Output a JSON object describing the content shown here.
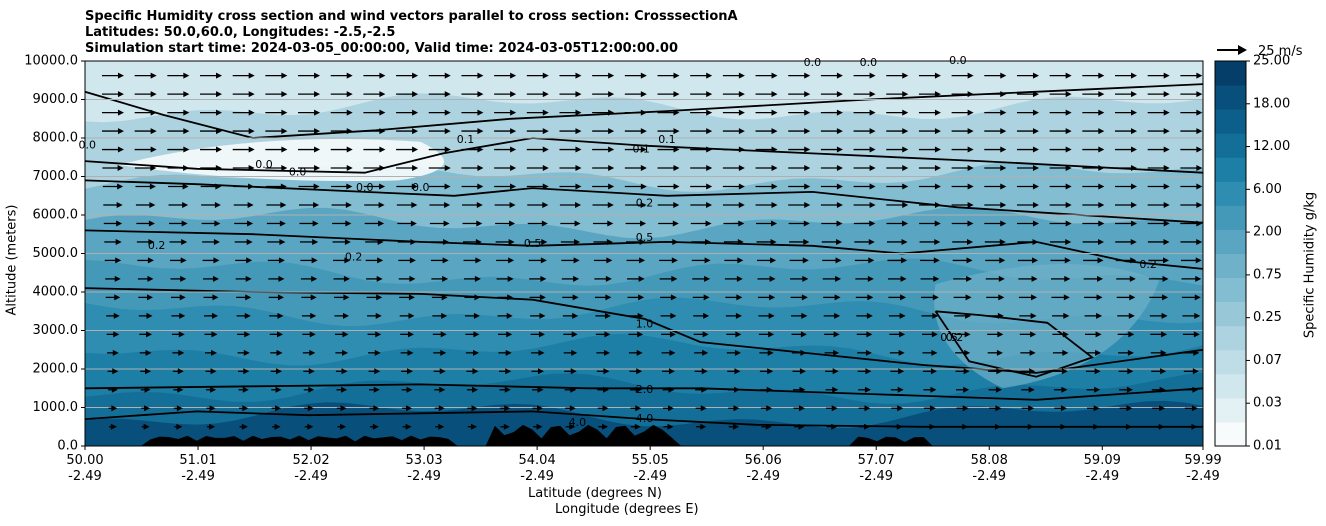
{
  "chart_data": {
    "type": "contour",
    "title_lines": [
      "Specific Humidity cross section and wind vectors parallel to cross section: CrosssectionA",
      "Latitudes: 50.0,60.0, Longitudes: -2.5,-2.5",
      "Simulation start time: 2024-03-05_00:00:00, Valid time: 2024-03-05T12:00:00.00"
    ],
    "ylabel": "Altitude (meters)",
    "xlabel_lines": [
      "Latitude (degrees N)",
      "Longitude (degrees E)"
    ],
    "ylim": [
      0,
      10000
    ],
    "yticks": [
      "0.0",
      "1000.0",
      "2000.0",
      "3000.0",
      "4000.0",
      "5000.0",
      "6000.0",
      "7000.0",
      "8000.0",
      "9000.0",
      "10000.0"
    ],
    "xticks": [
      {
        "lat": "50.00",
        "lon": "-2.49"
      },
      {
        "lat": "51.01",
        "lon": "-2.49"
      },
      {
        "lat": "52.02",
        "lon": "-2.49"
      },
      {
        "lat": "53.03",
        "lon": "-2.49"
      },
      {
        "lat": "54.04",
        "lon": "-2.49"
      },
      {
        "lat": "55.05",
        "lon": "-2.49"
      },
      {
        "lat": "56.06",
        "lon": "-2.49"
      },
      {
        "lat": "57.07",
        "lon": "-2.49"
      },
      {
        "lat": "58.08",
        "lon": "-2.49"
      },
      {
        "lat": "59.09",
        "lon": "-2.49"
      },
      {
        "lat": "59.99",
        "lon": "-2.49"
      }
    ],
    "grid": "horizontal",
    "colorbar": {
      "label": "Specific Humidity g/kg",
      "ticks": [
        "0.01",
        "0.03",
        "0.07",
        "0.25",
        "0.75",
        "2.00",
        "6.00",
        "12.00",
        "18.00",
        "25.00"
      ]
    },
    "quiver_key": "25 m/s",
    "contour_labels": [
      {
        "text": "0.1",
        "lat": 53.4,
        "alt": 7950
      },
      {
        "text": "0.1",
        "lat": 54.97,
        "alt": 7700
      },
      {
        "text": "0.1",
        "lat": 55.2,
        "alt": 7950
      },
      {
        "text": "0.2",
        "lat": 50.64,
        "alt": 5200
      },
      {
        "text": "0.2",
        "lat": 52.4,
        "alt": 4900
      },
      {
        "text": "0.2",
        "lat": 55.0,
        "alt": 6300
      },
      {
        "text": "0.2",
        "lat": 59.5,
        "alt": 4700
      },
      {
        "text": "0.5",
        "lat": 54.0,
        "alt": 5250
      },
      {
        "text": "0.5",
        "lat": 55.0,
        "alt": 5400
      },
      {
        "text": "1.0",
        "lat": 55.0,
        "alt": 3150
      },
      {
        "text": "2.0",
        "lat": 55.0,
        "alt": 1450
      },
      {
        "text": "4.0",
        "lat": 55.0,
        "alt": 700
      },
      {
        "text": "4.0",
        "lat": 54.4,
        "alt": 600
      },
      {
        "text": "0.0",
        "lat": 50.02,
        "alt": 7800
      },
      {
        "text": "0.0",
        "lat": 51.6,
        "alt": 7300
      },
      {
        "text": "0.0",
        "lat": 51.9,
        "alt": 7100
      },
      {
        "text": "0.0",
        "lat": 52.5,
        "alt": 6700
      },
      {
        "text": "0.0",
        "lat": 53.0,
        "alt": 6700
      },
      {
        "text": "0.0",
        "lat": 56.5,
        "alt": 9950
      },
      {
        "text": "0.0",
        "lat": 57.0,
        "alt": 9950
      },
      {
        "text": "0.0",
        "lat": 57.8,
        "alt": 10000
      },
      {
        "text": "0.5",
        "lat": 57.72,
        "alt": 2800
      },
      {
        "text": "0.2",
        "lat": 57.77,
        "alt": 2800
      }
    ],
    "humidity_bands_alt": [
      {
        "alt": 10000,
        "level": 2
      },
      {
        "alt": 8800,
        "level": 4
      },
      {
        "alt": 7000,
        "level": 6
      },
      {
        "alt": 5800,
        "level": 8
      },
      {
        "alt": 4500,
        "level": 9
      },
      {
        "alt": 3500,
        "level": 10
      },
      {
        "alt": 2500,
        "level": 11
      },
      {
        "alt": 1500,
        "level": 12
      },
      {
        "alt": 800,
        "level": 14
      }
    ]
  }
}
